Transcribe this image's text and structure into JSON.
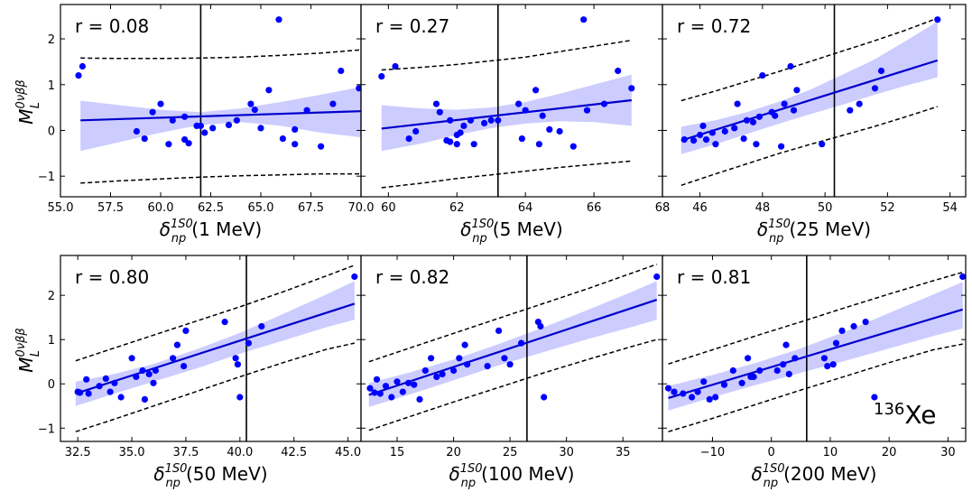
{
  "figure": {
    "ylabel": "M_L^{0νββ}",
    "ylabel_main": "M",
    "ylabel_sup": "0νββ",
    "ylabel_sub": "L",
    "nucleus_label": "¹³⁶Xe",
    "nucleus_mass": "136",
    "nucleus_symbol": "Xe",
    "colors": {
      "points": "#0000ff",
      "fit": "#0000cc",
      "band": "#ccccff",
      "prediction": "#000000",
      "vline": "#000000"
    }
  },
  "chart_data": [
    {
      "type": "scatter",
      "r_label": "r = 0.08",
      "xlabel": "δ_np^{1S0}(1 MeV)",
      "xlabel_main": "δ",
      "xlabel_sup": "1S0",
      "xlabel_sub": "np",
      "xlabel_suffix": "(1 MeV)",
      "xlim": [
        55.0,
        70.0
      ],
      "ylim": [
        -1.45,
        2.75
      ],
      "xticks": [
        55.0,
        57.5,
        60.0,
        62.5,
        65.0,
        67.5,
        70.0
      ],
      "xtick_labels": [
        "55.0",
        "57.5",
        "60.0",
        "62.5",
        "65.0",
        "67.5",
        "70.0"
      ],
      "yticks": [
        -1,
        0,
        1,
        2
      ],
      "ytick_labels": [
        "−1",
        "0",
        "1",
        "2"
      ],
      "vline": 62.0,
      "fit": {
        "x": [
          56.0,
          70.0
        ],
        "y": [
          0.22,
          0.42
        ]
      },
      "band": {
        "x": [
          56.0,
          58.0,
          60.0,
          62.0,
          64.0,
          66.0,
          68.0,
          70.0
        ],
        "upper": [
          0.65,
          0.55,
          0.45,
          0.4,
          0.48,
          0.62,
          0.78,
          0.95
        ],
        "lower": [
          -0.45,
          -0.25,
          -0.05,
          0.12,
          0.18,
          0.1,
          -0.05,
          -0.15
        ]
      },
      "pred_upper": {
        "x": [
          56.0,
          58.0,
          60.0,
          62.0,
          64.0,
          66.0,
          68.0,
          70.0
        ],
        "y": [
          1.58,
          1.57,
          1.57,
          1.58,
          1.6,
          1.64,
          1.69,
          1.76
        ]
      },
      "pred_lower": {
        "x": [
          56.0,
          58.0,
          60.0,
          62.0,
          64.0,
          66.0,
          68.0,
          70.0
        ],
        "y": [
          -1.15,
          -1.1,
          -1.06,
          -1.02,
          -0.99,
          -0.97,
          -0.95,
          -0.95
        ]
      },
      "points": {
        "x": [
          55.9,
          56.1,
          58.8,
          59.2,
          59.6,
          60.0,
          60.4,
          60.6,
          61.2,
          61.2,
          61.4,
          61.8,
          62.0,
          62.2,
          62.6,
          63.4,
          63.8,
          64.5,
          64.7,
          65.0,
          65.4,
          65.9,
          66.1,
          66.7,
          66.7,
          67.3,
          68.0,
          68.6,
          69.0,
          69.9
        ],
        "y": [
          1.2,
          1.4,
          -0.02,
          -0.18,
          0.4,
          0.58,
          -0.3,
          0.22,
          -0.2,
          0.3,
          -0.28,
          0.1,
          0.1,
          -0.05,
          0.05,
          0.12,
          0.22,
          0.58,
          0.45,
          0.05,
          0.88,
          2.42,
          -0.18,
          0.02,
          -0.3,
          0.44,
          -0.35,
          0.58,
          1.3,
          0.92
        ]
      }
    },
    {
      "type": "scatter",
      "r_label": "r = 0.27",
      "xlabel": "δ_np^{1S0}(5 MeV)",
      "xlabel_main": "δ",
      "xlabel_sup": "1S0",
      "xlabel_sub": "np",
      "xlabel_suffix": "(5 MeV)",
      "xlim": [
        59.2,
        68.0
      ],
      "ylim": [
        -1.45,
        2.75
      ],
      "xticks": [
        60,
        62,
        64,
        66,
        68
      ],
      "xtick_labels": [
        "60",
        "62",
        "64",
        "66",
        "68"
      ],
      "yticks": [
        -1,
        0,
        1,
        2
      ],
      "ytick_labels": [
        "−1",
        "0",
        "1",
        "2"
      ],
      "vline": 63.2,
      "fit": {
        "x": [
          59.8,
          67.1
        ],
        "y": [
          0.04,
          0.66
        ]
      },
      "band": {
        "x": [
          59.8,
          61.0,
          62.0,
          63.0,
          64.0,
          65.0,
          66.0,
          67.1
        ],
        "upper": [
          0.55,
          0.48,
          0.45,
          0.5,
          0.62,
          0.8,
          1.0,
          1.22
        ],
        "lower": [
          -0.45,
          -0.28,
          -0.1,
          0.05,
          0.15,
          0.2,
          0.18,
          0.1
        ]
      },
      "pred_upper": {
        "x": [
          59.8,
          61.0,
          62.0,
          63.0,
          64.0,
          65.0,
          66.0,
          67.1
        ],
        "y": [
          1.32,
          1.38,
          1.44,
          1.52,
          1.6,
          1.72,
          1.84,
          1.97
        ]
      },
      "pred_lower": {
        "x": [
          59.8,
          61.0,
          62.0,
          63.0,
          64.0,
          65.0,
          66.0,
          67.1
        ],
        "y": [
          -1.25,
          -1.15,
          -1.05,
          -0.97,
          -0.89,
          -0.81,
          -0.74,
          -0.67
        ]
      },
      "points": {
        "x": [
          59.8,
          60.2,
          60.6,
          60.8,
          61.4,
          61.5,
          61.7,
          61.8,
          61.8,
          62.0,
          62.0,
          62.1,
          62.2,
          62.4,
          62.5,
          62.8,
          63.0,
          63.2,
          63.8,
          63.9,
          64.0,
          64.3,
          64.4,
          64.5,
          64.7,
          65.0,
          65.4,
          65.7,
          65.8,
          66.3,
          66.7,
          67.1
        ],
        "y": [
          1.18,
          1.4,
          -0.18,
          -0.02,
          0.58,
          0.4,
          -0.22,
          0.22,
          -0.25,
          -0.3,
          -0.1,
          -0.05,
          0.1,
          0.22,
          -0.3,
          0.16,
          0.22,
          0.22,
          0.58,
          -0.18,
          0.44,
          0.88,
          -0.3,
          0.32,
          0.02,
          -0.02,
          -0.35,
          2.42,
          0.44,
          0.58,
          1.3,
          0.92
        ]
      }
    },
    {
      "type": "scatter",
      "r_label": "r = 0.72",
      "xlabel": "δ_np^{1S0}(25 MeV)",
      "xlabel_main": "δ",
      "xlabel_sup": "1S0",
      "xlabel_sub": "np",
      "xlabel_suffix": "(25 MeV)",
      "xlim": [
        44.8,
        54.5
      ],
      "ylim": [
        -1.45,
        2.75
      ],
      "xticks": [
        46,
        48,
        50,
        52,
        54
      ],
      "xtick_labels": [
        "46",
        "48",
        "50",
        "52",
        "54"
      ],
      "yticks": [
        -1,
        0,
        1,
        2
      ],
      "ytick_labels": [
        "−1",
        "0",
        "1",
        "2"
      ],
      "vline": 50.3,
      "fit": {
        "x": [
          45.4,
          53.6
        ],
        "y": [
          -0.22,
          1.53
        ]
      },
      "band": {
        "x": [
          45.4,
          46.5,
          47.5,
          48.5,
          49.5,
          50.5,
          51.5,
          52.5,
          53.6
        ],
        "upper": [
          0.08,
          0.22,
          0.4,
          0.62,
          0.88,
          1.2,
          1.52,
          1.92,
          2.38
        ],
        "lower": [
          -0.52,
          -0.3,
          -0.08,
          0.14,
          0.35,
          0.55,
          0.76,
          0.96,
          1.16
        ]
      },
      "pred_upper": {
        "x": [
          45.4,
          46.5,
          47.5,
          48.5,
          49.5,
          50.5,
          51.5,
          52.5,
          53.6
        ],
        "y": [
          0.65,
          0.86,
          1.07,
          1.28,
          1.5,
          1.72,
          1.94,
          2.17,
          2.45
        ]
      },
      "pred_lower": {
        "x": [
          45.4,
          46.5,
          47.5,
          48.5,
          49.5,
          50.5,
          51.5,
          52.5,
          53.6
        ],
        "y": [
          -1.2,
          -0.95,
          -0.73,
          -0.51,
          -0.31,
          -0.12,
          0.07,
          0.28,
          0.52
        ]
      },
      "points": {
        "x": [
          45.5,
          45.8,
          46.0,
          46.1,
          46.2,
          46.4,
          46.5,
          46.8,
          47.1,
          47.2,
          47.4,
          47.5,
          47.7,
          47.8,
          47.9,
          48.0,
          48.3,
          48.4,
          48.6,
          48.7,
          48.9,
          49.0,
          49.1,
          49.9,
          50.8,
          51.1,
          51.6,
          51.8,
          53.6
        ],
        "y": [
          -0.2,
          -0.22,
          -0.1,
          0.1,
          -0.2,
          -0.05,
          -0.3,
          -0.02,
          0.05,
          0.58,
          -0.18,
          0.22,
          0.18,
          -0.3,
          0.3,
          1.2,
          0.4,
          0.32,
          -0.35,
          0.58,
          1.4,
          0.44,
          0.88,
          -0.3,
          0.44,
          0.58,
          0.92,
          1.3,
          2.42
        ]
      }
    },
    {
      "type": "scatter",
      "r_label": "r = 0.80",
      "xlabel": "δ_np^{1S0}(50 MeV)",
      "xlabel_main": "δ",
      "xlabel_sup": "1S0",
      "xlabel_sub": "np",
      "xlabel_suffix": "(50 MeV)",
      "xlim": [
        31.7,
        45.6
      ],
      "ylim": [
        -1.3,
        2.9
      ],
      "xticks": [
        32.5,
        35.0,
        37.5,
        40.0,
        42.5,
        45.0
      ],
      "xtick_labels": [
        "32.5",
        "35.0",
        "37.5",
        "40.0",
        "42.5",
        "45.0"
      ],
      "yticks": [
        -1,
        0,
        1,
        2
      ],
      "ytick_labels": [
        "−1",
        "0",
        "1",
        "2"
      ],
      "vline": 40.3,
      "fit": {
        "x": [
          32.4,
          45.3
        ],
        "y": [
          -0.22,
          1.81
        ]
      },
      "band": {
        "x": [
          32.4,
          34.0,
          36.0,
          38.0,
          40.0,
          42.0,
          44.0,
          45.3
        ],
        "upper": [
          0.05,
          0.2,
          0.45,
          0.78,
          1.15,
          1.58,
          2.02,
          2.32
        ],
        "lower": [
          -0.5,
          -0.25,
          0.05,
          0.35,
          0.68,
          0.98,
          1.28,
          1.45
        ]
      },
      "pred_upper": {
        "x": [
          32.4,
          34.0,
          36.0,
          38.0,
          40.0,
          42.0,
          44.0,
          45.3
        ],
        "y": [
          0.52,
          0.78,
          1.1,
          1.42,
          1.74,
          2.08,
          2.44,
          2.68
        ]
      },
      "pred_lower": {
        "x": [
          32.4,
          34.0,
          36.0,
          38.0,
          40.0,
          42.0,
          44.0,
          45.3
        ],
        "y": [
          -1.08,
          -0.83,
          -0.5,
          -0.17,
          0.16,
          0.48,
          0.78,
          0.92
        ]
      },
      "points": {
        "x": [
          32.5,
          32.6,
          32.9,
          33.0,
          33.5,
          33.8,
          34.0,
          34.2,
          34.5,
          35.0,
          35.2,
          35.5,
          35.6,
          35.8,
          36.0,
          36.1,
          36.9,
          37.1,
          37.4,
          37.5,
          39.3,
          39.8,
          39.9,
          40.0,
          40.4,
          41.0,
          45.3
        ],
        "y": [
          -0.18,
          -0.2,
          0.1,
          -0.22,
          -0.05,
          0.12,
          -0.18,
          0.02,
          -0.3,
          0.58,
          0.16,
          0.3,
          -0.35,
          0.22,
          0.02,
          0.3,
          0.58,
          0.88,
          0.4,
          1.2,
          1.4,
          0.58,
          0.44,
          -0.3,
          0.92,
          1.3,
          2.42
        ]
      }
    },
    {
      "type": "scatter",
      "r_label": "r = 0.82",
      "xlabel": "δ_np^{1S0}(100 MeV)",
      "xlabel_main": "δ",
      "xlabel_sup": "1S0",
      "xlabel_sub": "np",
      "xlabel_suffix": "(100 MeV)",
      "xlim": [
        11.8,
        38.5
      ],
      "ylim": [
        -1.3,
        2.9
      ],
      "xticks": [
        15,
        20,
        25,
        30,
        35
      ],
      "xtick_labels": [
        "15",
        "20",
        "25",
        "30",
        "35"
      ],
      "yticks": [
        -1,
        0,
        1,
        2
      ],
      "ytick_labels": [
        "−1",
        "0",
        "1",
        "2"
      ],
      "vline": 26.5,
      "fit": {
        "x": [
          12.5,
          38.0
        ],
        "y": [
          -0.25,
          1.9
        ]
      },
      "band": {
        "x": [
          12.5,
          16.0,
          20.0,
          24.0,
          28.0,
          32.0,
          36.0,
          38.0
        ],
        "upper": [
          0.02,
          0.25,
          0.55,
          0.9,
          1.28,
          1.68,
          2.1,
          2.32
        ],
        "lower": [
          -0.52,
          -0.25,
          0.08,
          0.42,
          0.72,
          1.02,
          1.3,
          1.45
        ]
      },
      "pred_upper": {
        "x": [
          12.5,
          16.0,
          20.0,
          24.0,
          28.0,
          32.0,
          36.0,
          38.0
        ],
        "y": [
          0.5,
          0.8,
          1.14,
          1.48,
          1.82,
          2.16,
          2.52,
          2.7
        ]
      },
      "pred_lower": {
        "x": [
          12.5,
          16.0,
          20.0,
          24.0,
          28.0,
          32.0,
          36.0,
          38.0
        ],
        "y": [
          -1.05,
          -0.75,
          -0.41,
          -0.08,
          0.25,
          0.56,
          0.86,
          1.0
        ]
      },
      "points": {
        "x": [
          12.6,
          13.0,
          13.2,
          13.5,
          14.0,
          14.5,
          15.0,
          15.5,
          16.0,
          16.5,
          17.0,
          17.5,
          18.0,
          18.5,
          19.0,
          20.0,
          20.5,
          21.0,
          21.2,
          23.0,
          24.0,
          24.5,
          25.0,
          26.0,
          27.5,
          27.7,
          28.0,
          38.0
        ],
        "y": [
          -0.1,
          -0.2,
          0.1,
          -0.22,
          -0.05,
          -0.3,
          0.05,
          -0.18,
          0.02,
          -0.02,
          -0.35,
          0.3,
          0.58,
          0.16,
          0.22,
          0.3,
          0.58,
          0.88,
          0.44,
          0.4,
          1.2,
          0.58,
          0.44,
          0.92,
          1.4,
          1.3,
          -0.3,
          2.42
        ]
      }
    },
    {
      "type": "scatter",
      "r_label": "r = 0.81",
      "xlabel": "δ_np^{1S0}(200 MeV)",
      "xlabel_main": "δ",
      "xlabel_sup": "1S0",
      "xlabel_sub": "np",
      "xlabel_suffix": "(200 MeV)",
      "xlim": [
        -18.5,
        33.0
      ],
      "ylim": [
        -1.3,
        2.9
      ],
      "xticks": [
        -10,
        0,
        10,
        20,
        30
      ],
      "xtick_labels": [
        "−10",
        "0",
        "10",
        "20",
        "30"
      ],
      "yticks": [
        -1,
        0,
        1,
        2
      ],
      "ytick_labels": [
        "−1",
        "0",
        "1",
        "2"
      ],
      "vline": 6.0,
      "fit": {
        "x": [
          -17.5,
          32.5
        ],
        "y": [
          -0.32,
          1.68
        ]
      },
      "band": {
        "x": [
          -17.5,
          -10.0,
          -2.5,
          5.0,
          12.5,
          20.0,
          27.5,
          32.5
        ],
        "upper": [
          -0.05,
          0.2,
          0.48,
          0.8,
          1.18,
          1.6,
          2.02,
          2.3
        ],
        "lower": [
          -0.6,
          -0.3,
          -0.02,
          0.25,
          0.52,
          0.8,
          1.08,
          1.25
        ]
      },
      "pred_upper": {
        "x": [
          -17.5,
          -10.0,
          -2.5,
          5.0,
          12.5,
          20.0,
          27.5,
          32.5
        ],
        "y": [
          0.45,
          0.77,
          1.09,
          1.4,
          1.72,
          2.03,
          2.33,
          2.52
        ]
      },
      "pred_lower": {
        "x": [
          -17.5,
          -10.0,
          -2.5,
          5.0,
          12.5,
          20.0,
          27.5,
          32.5
        ],
        "y": [
          -1.08,
          -0.78,
          -0.46,
          -0.14,
          0.17,
          0.48,
          0.77,
          0.9
        ]
      },
      "points": {
        "x": [
          -17.5,
          -16.5,
          -15.0,
          -13.5,
          -12.5,
          -11.5,
          -10.5,
          -9.5,
          -8.0,
          -6.5,
          -5.0,
          -4.0,
          -3.5,
          -3.0,
          -2.0,
          1.0,
          2.0,
          2.5,
          3.0,
          4.0,
          9.0,
          9.5,
          10.5,
          11.0,
          12.0,
          14.0,
          16.0,
          17.5,
          32.5
        ],
        "y": [
          -0.1,
          -0.18,
          -0.22,
          -0.3,
          -0.18,
          0.05,
          -0.35,
          -0.3,
          -0.02,
          0.3,
          0.02,
          0.58,
          0.16,
          0.16,
          0.3,
          0.3,
          0.44,
          0.88,
          0.22,
          0.58,
          0.58,
          0.4,
          0.44,
          0.92,
          1.2,
          1.3,
          1.4,
          -0.3,
          2.42
        ]
      }
    }
  ]
}
